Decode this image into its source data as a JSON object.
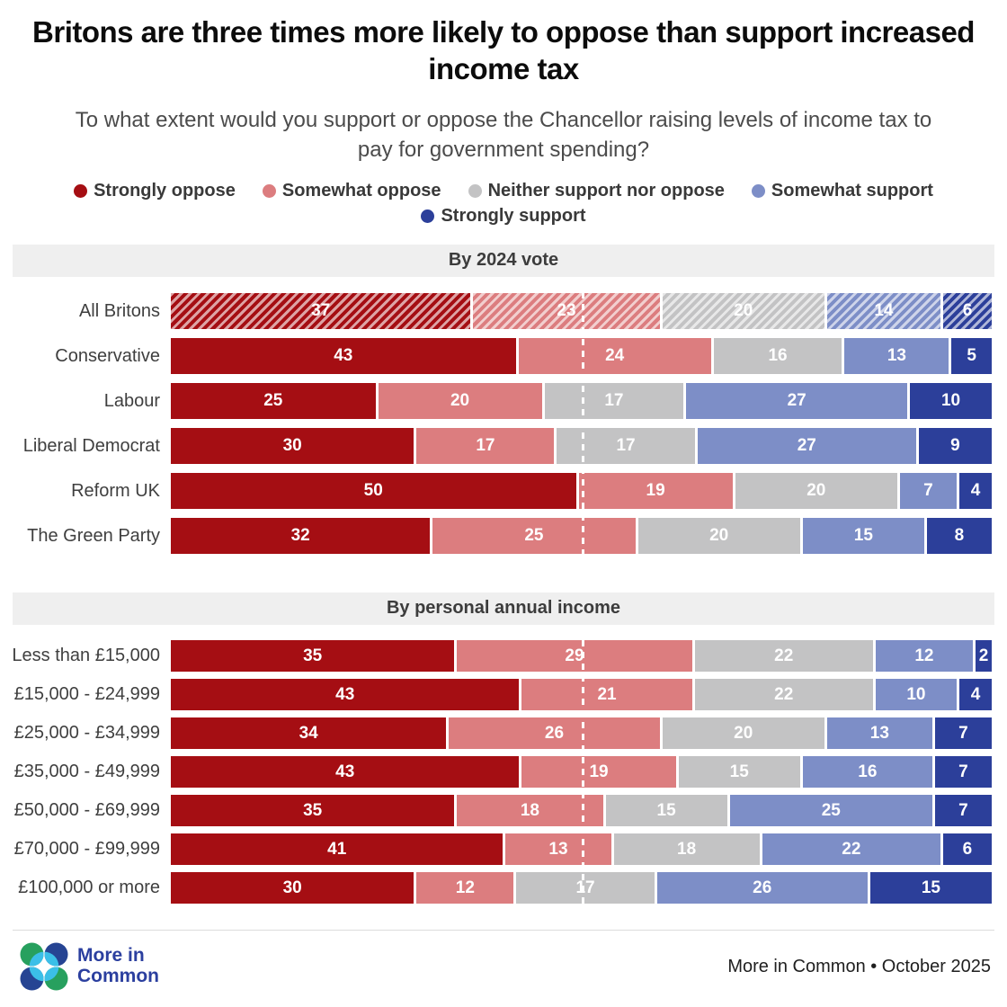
{
  "title": "Britons are three times more likely to oppose than support increased income tax",
  "subtitle": "To what extent would you support or oppose the Chancellor raising levels of income tax to pay for government spending?",
  "legend": [
    {
      "label": "Strongly oppose",
      "color": "#a50e13"
    },
    {
      "label": "Somewhat oppose",
      "color": "#dc7d7f"
    },
    {
      "label": "Neither support nor oppose",
      "color": "#c3c3c4"
    },
    {
      "label": "Somewhat support",
      "color": "#7d8ec7"
    },
    {
      "label": "Strongly support",
      "color": "#2c3f9a"
    }
  ],
  "chart_data": [
    {
      "type": "bar",
      "variant": "horizontal-stacked-100pct",
      "section_title": "By 2024 vote",
      "categories": [
        "All Britons",
        "Conservative",
        "Labour",
        "Liberal Democrat",
        "Reform UK",
        "The Green Party"
      ],
      "series": [
        {
          "name": "Strongly oppose",
          "color": "#a50e13",
          "values": [
            37,
            43,
            25,
            30,
            50,
            32
          ]
        },
        {
          "name": "Somewhat oppose",
          "color": "#dc7d7f",
          "values": [
            23,
            24,
            20,
            17,
            19,
            25
          ]
        },
        {
          "name": "Neither support nor oppose",
          "color": "#c3c3c4",
          "values": [
            20,
            16,
            17,
            17,
            20,
            20
          ]
        },
        {
          "name": "Somewhat support",
          "color": "#7d8ec7",
          "values": [
            14,
            13,
            27,
            27,
            7,
            15
          ]
        },
        {
          "name": "Strongly support",
          "color": "#2c3f9a",
          "values": [
            6,
            5,
            10,
            9,
            4,
            8
          ]
        }
      ],
      "hatched_categories": [
        "All Britons"
      ],
      "reference_line_pct": 50,
      "xlim": [
        0,
        100
      ],
      "value_labels": "inside-white",
      "legend_position": "top"
    },
    {
      "type": "bar",
      "variant": "horizontal-stacked-100pct",
      "section_title": "By personal annual income",
      "categories": [
        "Less than £15,000",
        "£15,000 - £24,999",
        "£25,000 - £34,999",
        "£35,000 - £49,999",
        "£50,000 - £69,999",
        "£70,000 - £99,999",
        "£100,000 or more"
      ],
      "series": [
        {
          "name": "Strongly oppose",
          "color": "#a50e13",
          "values": [
            35,
            43,
            34,
            43,
            35,
            41,
            30
          ]
        },
        {
          "name": "Somewhat oppose",
          "color": "#dc7d7f",
          "values": [
            29,
            21,
            26,
            19,
            18,
            13,
            12
          ]
        },
        {
          "name": "Neither support nor oppose",
          "color": "#c3c3c4",
          "values": [
            22,
            22,
            20,
            15,
            15,
            18,
            17
          ]
        },
        {
          "name": "Somewhat support",
          "color": "#7d8ec7",
          "values": [
            12,
            10,
            13,
            16,
            25,
            22,
            26
          ]
        },
        {
          "name": "Strongly support",
          "color": "#2c3f9a",
          "values": [
            2,
            4,
            7,
            7,
            7,
            6,
            15
          ]
        }
      ],
      "hatched_categories": [],
      "reference_line_pct": 50,
      "xlim": [
        0,
        100
      ],
      "value_labels": "inside-white",
      "legend_position": "top"
    }
  ],
  "footer": {
    "brand_line1": "More in",
    "brand_line2": "Common",
    "credit": "More in Common • October 2025"
  },
  "colors": {
    "section_band_bg": "#efefef",
    "reference_line": "#ffffff",
    "brand_navy": "#2b3f9f",
    "brand_green": "#27a05e",
    "brand_cyan": "#3bbfe8"
  }
}
